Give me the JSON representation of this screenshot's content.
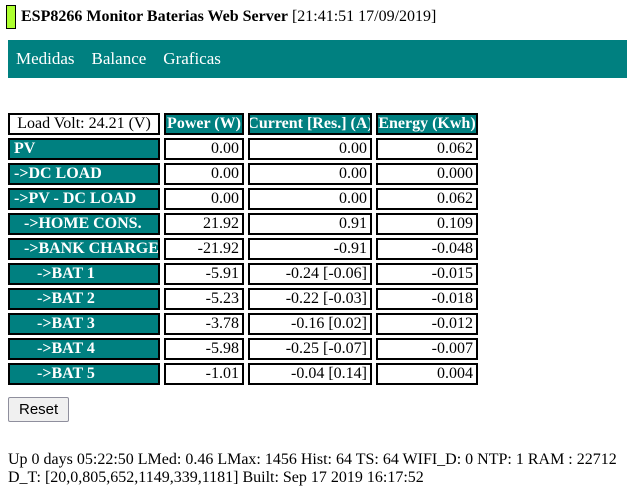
{
  "title": {
    "app_name": "ESP8266 Monitor Baterias Web Server",
    "timestamp": "[21:41:51 17/09/2019]"
  },
  "nav": {
    "items": [
      {
        "label": "Medidas"
      },
      {
        "label": "Balance"
      },
      {
        "label": "Graficas"
      }
    ]
  },
  "table": {
    "headers": [
      "Load Volt: 24.21 (V)",
      "Power (W)",
      "Current [Res.] (A)",
      "Energy (Kwh)"
    ],
    "rows": [
      {
        "label": "PV",
        "indent": 0,
        "power": "0.00",
        "current": "0.00",
        "energy": "0.062"
      },
      {
        "label": "->DC LOAD",
        "indent": 0,
        "power": "0.00",
        "current": "0.00",
        "energy": "0.000"
      },
      {
        "label": "->PV - DC LOAD",
        "indent": 0,
        "power": "0.00",
        "current": "0.00",
        "energy": "0.062"
      },
      {
        "label": "->HOME CONS.",
        "indent": 1,
        "power": "21.92",
        "current": "0.91",
        "energy": "0.109"
      },
      {
        "label": "->BANK CHARGE",
        "indent": 1,
        "power": "-21.92",
        "current": "-0.91",
        "energy": "-0.048"
      },
      {
        "label": "->BAT 1",
        "indent": 2,
        "power": "-5.91",
        "current": "-0.24 [-0.06]",
        "energy": "-0.015"
      },
      {
        "label": "->BAT 2",
        "indent": 2,
        "power": "-5.23",
        "current": "-0.22 [-0.03]",
        "energy": "-0.018"
      },
      {
        "label": "->BAT 3",
        "indent": 2,
        "power": "-3.78",
        "current": "-0.16 [0.02]",
        "energy": "-0.012"
      },
      {
        "label": "->BAT 4",
        "indent": 2,
        "power": "-5.98",
        "current": "-0.25 [-0.07]",
        "energy": "-0.007"
      },
      {
        "label": "->BAT 5",
        "indent": 2,
        "power": "-1.01",
        "current": "-0.04 [0.14]",
        "energy": "0.004"
      }
    ]
  },
  "reset_button": "Reset",
  "status": {
    "line1": "Up 0 days 05:22:50 LMed: 0.46 LMax: 1456 Hist: 64 TS: 64 WIFI_D: 0 NTP: 1 RAM : 22712",
    "line2": "D_T: [20,0,805,652,1149,339,1181] Built: Sep 17 2019 16:17:52"
  },
  "colors": {
    "teal": "#008080",
    "led_green": "#adff2f"
  }
}
